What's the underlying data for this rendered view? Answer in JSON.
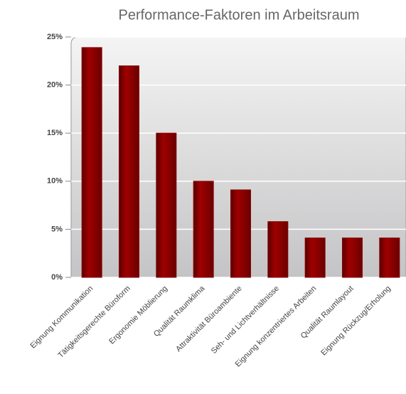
{
  "chart_data": {
    "type": "bar",
    "title": "Performance-Faktoren im Arbeitsraum",
    "categories": [
      "Eignung Kommunikation",
      "Tätigkeitsgerechte Büroform",
      "Ergonomie Möblierung",
      "Qualität Raumklima",
      "Attraktivität Büroambiente",
      "Seh- und Lichtverhältnisse",
      "Eignung konzentriertes Arbeiten",
      "Qualität Raumlayout",
      "Eignung Rückzug/Erholung"
    ],
    "values": [
      23.9,
      22,
      15,
      10,
      9.1,
      5.8,
      4.1,
      4.1,
      4.1
    ],
    "color": "#8b0000",
    "ylim": [
      0,
      25
    ],
    "yticks": [
      {
        "value": 0,
        "label": "0%"
      },
      {
        "value": 5,
        "label": "5%"
      },
      {
        "value": 10,
        "label": "10%"
      },
      {
        "value": 15,
        "label": "15%"
      },
      {
        "value": 20,
        "label": "20%"
      },
      {
        "value": 25,
        "label": "25%"
      }
    ],
    "grid": true
  }
}
